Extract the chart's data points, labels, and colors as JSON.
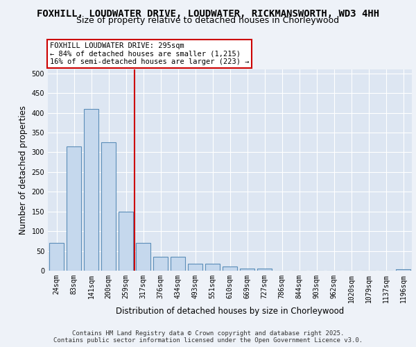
{
  "title_line1": "FOXHILL, LOUDWATER DRIVE, LOUDWATER, RICKMANSWORTH, WD3 4HH",
  "title_line2": "Size of property relative to detached houses in Chorleywood",
  "xlabel": "Distribution of detached houses by size in Chorleywood",
  "ylabel": "Number of detached properties",
  "categories": [
    "24sqm",
    "83sqm",
    "141sqm",
    "200sqm",
    "259sqm",
    "317sqm",
    "376sqm",
    "434sqm",
    "493sqm",
    "551sqm",
    "610sqm",
    "669sqm",
    "727sqm",
    "786sqm",
    "844sqm",
    "903sqm",
    "962sqm",
    "1020sqm",
    "1079sqm",
    "1137sqm",
    "1196sqm"
  ],
  "values": [
    70,
    315,
    410,
    325,
    150,
    70,
    35,
    35,
    18,
    18,
    10,
    5,
    5,
    0,
    0,
    0,
    0,
    0,
    0,
    0,
    3
  ],
  "bar_color": "#c5d8ed",
  "bar_edge_color": "#5b8db8",
  "vline_x_index": 4,
  "vline_color": "#cc0000",
  "annotation_title": "FOXHILL LOUDWATER DRIVE: 295sqm",
  "annotation_line2": "← 84% of detached houses are smaller (1,215)",
  "annotation_line3": "16% of semi-detached houses are larger (223) →",
  "annotation_box_color": "#cc0000",
  "ylim": [
    0,
    510
  ],
  "yticks": [
    0,
    50,
    100,
    150,
    200,
    250,
    300,
    350,
    400,
    450,
    500
  ],
  "footer": "Contains HM Land Registry data © Crown copyright and database right 2025.\nContains public sector information licensed under the Open Government Licence v3.0.",
  "background_color": "#eef2f8",
  "plot_bg_color": "#dde6f2",
  "grid_color": "#ffffff",
  "title_fontsize": 10,
  "subtitle_fontsize": 9,
  "tick_fontsize": 7,
  "label_fontsize": 8.5
}
